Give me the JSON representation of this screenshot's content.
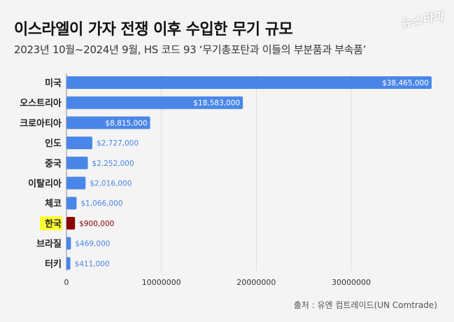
{
  "header": {
    "title": "이스라엘이 가자 전쟁 이후 수입한 무기 규모",
    "subtitle": "2023년 10월~2024년 9월,  HS 코드 93 ‘무기총포탄과 이들의 부분품과 부속품’",
    "logo": "뉴스타파"
  },
  "footer": {
    "source": "출처 : 유엔 컴트레이드(UN Comtrade)"
  },
  "colors": {
    "bar": "#4a86e8",
    "highlight_bar": "#8b0000",
    "highlight_label_bg": "#ffff33",
    "value_inside": "#ffffff",
    "value_outside": "#4a86e8",
    "value_highlight": "#8b0000"
  },
  "chart_data": {
    "type": "bar",
    "orientation": "horizontal",
    "categories": [
      "미국",
      "오스트리아",
      "크로아티아",
      "인도",
      "중국",
      "이탈리아",
      "체코",
      "한국",
      "브라질",
      "터키"
    ],
    "values": [
      38465000,
      18583000,
      8815000,
      2727000,
      2252000,
      2016000,
      1066000,
      900000,
      469000,
      411000
    ],
    "value_labels": [
      "$38,465,000",
      "$18,583,000",
      "$8,815,000",
      "$2,727,000",
      "$2,252,000",
      "$2,016,000",
      "$1,066,000",
      "$900,000",
      "$469,000",
      "$411,000"
    ],
    "highlight": "한국",
    "xlim": [
      0,
      38465000
    ],
    "xticks": [
      0,
      10000000,
      20000000,
      30000000
    ],
    "xtick_labels": [
      "0",
      "10000000",
      "20000000",
      "30000000"
    ],
    "grid": true
  }
}
